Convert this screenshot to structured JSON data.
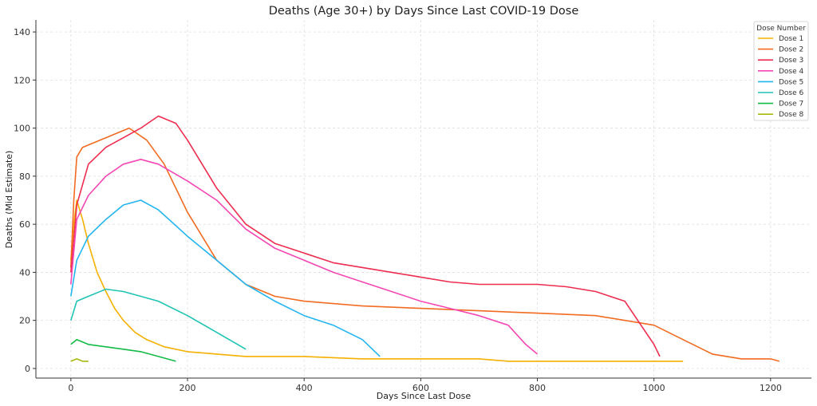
{
  "chart_data": {
    "type": "line",
    "title": "Deaths (Age 30+) by Days Since Last COVID-19 Dose",
    "xlabel": "Days Since Last Dose",
    "ylabel": "Deaths (Mid Estimate)",
    "xlim": [
      -60,
      1270
    ],
    "ylim": [
      -4,
      145
    ],
    "xticks": [
      0,
      200,
      400,
      600,
      800,
      1000,
      1200
    ],
    "yticks": [
      0,
      20,
      40,
      60,
      80,
      100,
      120,
      140
    ],
    "grid": true,
    "legend": {
      "title": "Dose Number",
      "placement": "top-right"
    },
    "series": [
      {
        "name": "Dose 1",
        "color": "#f5b000",
        "x": [
          0,
          5,
          10,
          20,
          30,
          45,
          60,
          75,
          90,
          110,
          130,
          160,
          200,
          250,
          300,
          400,
          500,
          600,
          700,
          750,
          850,
          1050
        ],
        "y": [
          45,
          60,
          70,
          62,
          52,
          40,
          32,
          25,
          20,
          15,
          12,
          9,
          7,
          6,
          5,
          5,
          4,
          4,
          4,
          3,
          3,
          3
        ]
      },
      {
        "name": "Dose 2",
        "color": "#f26b21",
        "x": [
          0,
          5,
          10,
          20,
          40,
          60,
          80,
          100,
          130,
          160,
          200,
          250,
          300,
          350,
          400,
          500,
          600,
          700,
          800,
          900,
          1000,
          1050,
          1100,
          1150,
          1200,
          1215
        ],
        "y": [
          42,
          70,
          88,
          92,
          94,
          96,
          98,
          100,
          95,
          85,
          65,
          45,
          35,
          30,
          28,
          26,
          25,
          24,
          23,
          22,
          18,
          12,
          6,
          4,
          4,
          3
        ]
      },
      {
        "name": "Dose 3",
        "color": "#ee2d4f",
        "x": [
          0,
          10,
          30,
          60,
          90,
          120,
          150,
          180,
          200,
          250,
          300,
          350,
          400,
          450,
          500,
          550,
          600,
          650,
          700,
          750,
          800,
          850,
          900,
          950,
          1000,
          1010
        ],
        "y": [
          40,
          68,
          85,
          92,
          96,
          100,
          105,
          102,
          95,
          75,
          60,
          52,
          48,
          44,
          42,
          40,
          38,
          36,
          35,
          35,
          35,
          34,
          32,
          28,
          10,
          5
        ]
      },
      {
        "name": "Dose 4",
        "color": "#f447b5",
        "x": [
          0,
          10,
          30,
          60,
          90,
          120,
          150,
          200,
          250,
          300,
          350,
          400,
          450,
          500,
          550,
          600,
          650,
          700,
          750,
          780,
          800
        ],
        "y": [
          35,
          62,
          72,
          80,
          85,
          87,
          85,
          78,
          70,
          58,
          50,
          45,
          40,
          36,
          32,
          28,
          25,
          22,
          18,
          10,
          6
        ]
      },
      {
        "name": "Dose 5",
        "color": "#23b5f0",
        "x": [
          0,
          10,
          30,
          60,
          90,
          120,
          150,
          200,
          250,
          300,
          350,
          400,
          450,
          500,
          530
        ],
        "y": [
          30,
          45,
          55,
          62,
          68,
          70,
          66,
          55,
          45,
          35,
          28,
          22,
          18,
          12,
          5
        ]
      },
      {
        "name": "Dose 6",
        "color": "#1fc4b4",
        "x": [
          0,
          10,
          30,
          60,
          90,
          120,
          150,
          200,
          250,
          300
        ],
        "y": [
          20,
          28,
          30,
          33,
          32,
          30,
          28,
          22,
          15,
          8
        ]
      },
      {
        "name": "Dose 7",
        "color": "#12bb45",
        "x": [
          0,
          10,
          30,
          60,
          90,
          120,
          150,
          180
        ],
        "y": [
          10,
          12,
          10,
          9,
          8,
          7,
          5,
          3
        ]
      },
      {
        "name": "Dose 8",
        "color": "#a6b90f",
        "x": [
          0,
          10,
          20,
          30
        ],
        "y": [
          3,
          4,
          3,
          3
        ]
      }
    ]
  }
}
